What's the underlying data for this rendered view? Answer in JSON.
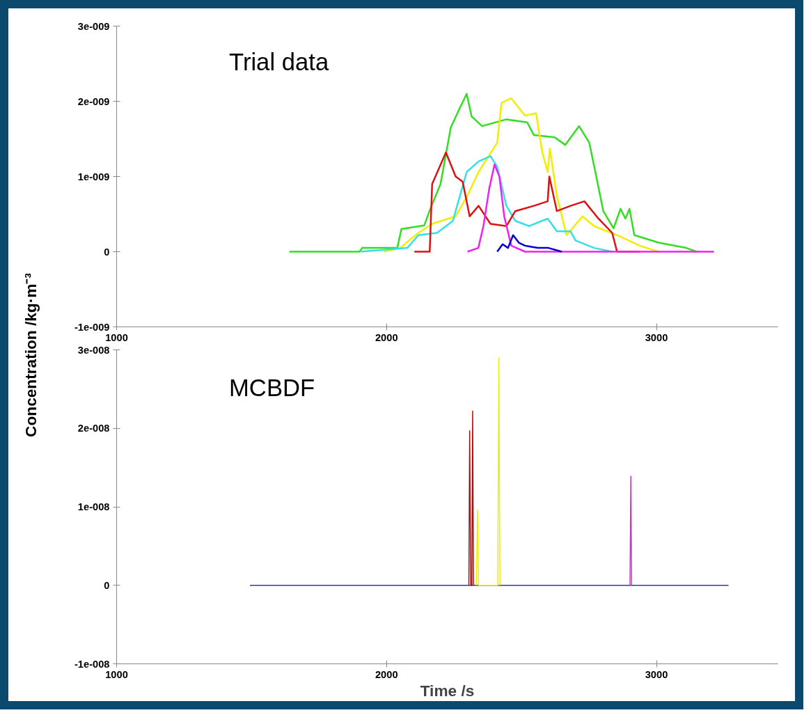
{
  "chart_data": [
    {
      "type": "line",
      "title": "Trial data",
      "ylabel": "Concentration /kg·m⁻³",
      "xlim": [
        1000,
        3450
      ],
      "ylim": [
        -1e-09,
        3e-09
      ],
      "xticks": [
        1000,
        2000,
        3000
      ],
      "yticks": [
        {
          "value": -1e-09,
          "label": "-1e-009"
        },
        {
          "value": 0,
          "label": "0"
        },
        {
          "value": 1e-09,
          "label": "1e-009"
        },
        {
          "value": 2e-09,
          "label": "2e-009"
        },
        {
          "value": 3e-09,
          "label": "3e-009"
        }
      ],
      "series": [
        {
          "color": "#33dd22",
          "x": [
            1640,
            1900,
            1910,
            2040,
            2055,
            2140,
            2160,
            2200,
            2238,
            2270,
            2297,
            2315,
            2354,
            2444,
            2521,
            2546,
            2623,
            2662,
            2713,
            2751,
            2777,
            2803,
            2841,
            2867,
            2885,
            2900,
            2918,
            3008,
            3110,
            3149
          ],
          "values": [
            0,
            0,
            5e-11,
            5e-11,
            3e-10,
            3.5e-10,
            5.5e-10,
            9e-10,
            1.65e-09,
            1.9e-09,
            2.1e-09,
            1.8e-09,
            1.67e-09,
            1.76e-09,
            1.72e-09,
            1.55e-09,
            1.52e-09,
            1.42e-09,
            1.67e-09,
            1.45e-09,
            1e-09,
            5.4e-10,
            3.1e-10,
            5.7e-10,
            4.4e-10,
            5.7e-10,
            2.2e-10,
            1.2e-10,
            5e-11,
            0
          ]
        },
        {
          "color": "#f2ee00",
          "x": [
            1990,
            2050,
            2118,
            2169,
            2256,
            2300,
            2341,
            2410,
            2426,
            2462,
            2513,
            2554,
            2577,
            2597,
            2605,
            2631,
            2667,
            2726,
            2769,
            2854,
            2938,
            3008
          ],
          "values": [
            0,
            5e-11,
            2.5e-10,
            3.7e-10,
            4.7e-10,
            7.5e-10,
            1.06e-09,
            1.45e-09,
            1.98e-09,
            2.04e-09,
            1.81e-09,
            1.84e-09,
            1.32e-09,
            1.06e-09,
            1.37e-09,
            7.4e-10,
            2.2e-10,
            4.7e-10,
            3.4e-10,
            2.2e-10,
            8e-11,
            0
          ]
        },
        {
          "color": "#33e0e8",
          "x": [
            1905,
            2077,
            2118,
            2187,
            2246,
            2256,
            2297,
            2341,
            2385,
            2410,
            2444,
            2477,
            2528,
            2597,
            2631,
            2682,
            2700,
            2769,
            2836
          ],
          "values": [
            0,
            5e-11,
            2.2e-10,
            2.5e-10,
            4.1e-10,
            5.4e-10,
            1.06e-09,
            1.2e-09,
            1.27e-09,
            1.13e-09,
            6.1e-10,
            4.1e-10,
            3.4e-10,
            4.4e-10,
            2.7e-10,
            2.7e-10,
            1.5e-10,
            5e-11,
            0
          ]
        },
        {
          "color": "#dd1111",
          "x": [
            2103,
            2160,
            2169,
            2220,
            2256,
            2282,
            2308,
            2341,
            2385,
            2444,
            2477,
            2546,
            2597,
            2603,
            2631,
            2682,
            2733,
            2785,
            2836,
            2854,
            2938
          ],
          "values": [
            0,
            0,
            9e-10,
            1.32e-09,
            1e-09,
            9.3e-10,
            4.7e-10,
            6.1e-10,
            3.7e-10,
            3.4e-10,
            5.4e-10,
            6.1e-10,
            6.7e-10,
            1e-09,
            5.4e-10,
            6.1e-10,
            6.7e-10,
            4.4e-10,
            2.5e-10,
            0,
            0
          ]
        },
        {
          "color": "#ee22ee",
          "x": [
            2300,
            2340,
            2359,
            2380,
            2400,
            2418,
            2436,
            2462,
            2513,
            3213
          ],
          "values": [
            0,
            5e-11,
            3.4e-10,
            8.3e-10,
            1.16e-09,
            1e-09,
            4.7e-10,
            8e-11,
            0,
            0
          ]
        },
        {
          "color": "#0000cc",
          "x": [
            2410,
            2430,
            2450,
            2469,
            2490,
            2513,
            2560,
            2600,
            2649
          ],
          "values": [
            0,
            1e-10,
            5e-11,
            2.2e-10,
            1.2e-10,
            8e-11,
            5e-11,
            5e-11,
            0
          ]
        }
      ]
    },
    {
      "type": "line",
      "title": "MCBDF",
      "xlabel": "Time /s",
      "xlim": [
        1000,
        3450
      ],
      "ylim": [
        -1e-08,
        3e-08
      ],
      "xticks": [
        1000,
        2000,
        3000
      ],
      "yticks": [
        {
          "value": -1e-08,
          "label": "-1e-008"
        },
        {
          "value": 0,
          "label": "0"
        },
        {
          "value": 1e-08,
          "label": "1e-008"
        },
        {
          "value": 2e-08,
          "label": "2e-008"
        },
        {
          "value": 3e-08,
          "label": "3e-008"
        }
      ],
      "series": [
        {
          "color": "#3333aa",
          "x": [
            1494,
            3267
          ],
          "values": [
            0,
            0
          ]
        },
        {
          "color": "#aa1111",
          "x": [
            2305,
            2308,
            2312,
            2316,
            2319,
            2322
          ],
          "values": [
            0,
            1.97e-08,
            0,
            0,
            2.22e-08,
            0
          ]
        },
        {
          "color": "#eeee00",
          "x": [
            2333,
            2337,
            2341,
            2412,
            2416,
            2420
          ],
          "values": [
            0,
            9.6e-09,
            0,
            0,
            2.9e-08,
            0
          ]
        },
        {
          "color": "#cc33cc",
          "x": [
            2902,
            2905,
            2908
          ],
          "values": [
            0,
            1.39e-08,
            0
          ]
        }
      ]
    }
  ]
}
